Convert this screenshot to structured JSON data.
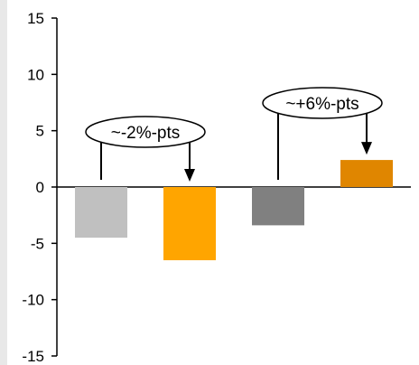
{
  "chart_data": {
    "type": "bar",
    "categories": [
      "",
      "",
      "",
      ""
    ],
    "values": [
      -4.5,
      -6.5,
      -3.4,
      2.4
    ],
    "colors": [
      "#c0c0c0",
      "#ffa500",
      "#808080",
      "#e08600"
    ],
    "ylim": [
      -15,
      15
    ],
    "yticks": [
      15,
      10,
      5,
      0,
      -5,
      -10,
      -15
    ],
    "title": "",
    "xlabel": "",
    "ylabel": "",
    "grid": false,
    "annotations": [
      {
        "text": "~-2%-pts",
        "from_bar": 0,
        "to_bar": 1
      },
      {
        "text": "~+6%-pts",
        "from_bar": 2,
        "to_bar": 3
      }
    ]
  }
}
